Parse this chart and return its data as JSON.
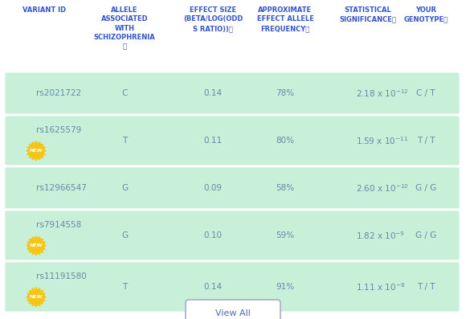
{
  "header_color": "#3355cc",
  "row_bg_color": "#c8f0d8",
  "white_bg": "#ffffff",
  "text_color_body": "#6688aa",
  "button_border_color": "#aaaacc",
  "button_text_color": "#5566bb",
  "new_badge_color": "#f5c518",
  "col_headers": [
    "VARIANT ID",
    "ALLELE\nASSOCIATED\nWITH\nSCHIZOPHRENIA\nⓘ",
    "EFFECT SIZE\n(BETA/LOG(ODD\nS RATIO))ⓘ",
    "APPROXIMATE\nEFFECT ALLELE\nFREQUENCYⓘ",
    "STATISTICAL\nSIGNIFICANCEⓘ",
    "YOUR\nGENOTYPEⓘ"
  ],
  "rows": [
    {
      "variant_id": "rs2021722",
      "new_badge": false,
      "allele": "C",
      "effect_size": "0.14",
      "freq": "78%",
      "significance_base": "2.18",
      "significance_exp": "-12",
      "genotype": "C / T"
    },
    {
      "variant_id": "rs1625579",
      "new_badge": true,
      "allele": "T",
      "effect_size": "0.11",
      "freq": "80%",
      "significance_base": "1.59",
      "significance_exp": "-11",
      "genotype": "T / T"
    },
    {
      "variant_id": "rs12966547",
      "new_badge": false,
      "allele": "G",
      "effect_size": "0.09",
      "freq": "58%",
      "significance_base": "2.60",
      "significance_exp": "-10",
      "genotype": "G / G"
    },
    {
      "variant_id": "rs7914558",
      "new_badge": true,
      "allele": "G",
      "effect_size": "0.10",
      "freq": "59%",
      "significance_base": "1.82",
      "significance_exp": "-9",
      "genotype": "G / G"
    },
    {
      "variant_id": "rs11191580",
      "new_badge": true,
      "allele": "T",
      "effect_size": "0.14",
      "freq": "91%",
      "significance_base": "1.11",
      "significance_exp": "-8",
      "genotype": "T / T"
    }
  ],
  "view_all_text": "View All",
  "header_font_size": 6.0,
  "body_font_size": 7.5
}
